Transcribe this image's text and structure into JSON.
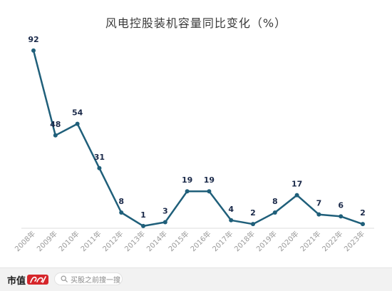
{
  "chart_data": {
    "type": "line",
    "title": "风电控股装机容量同比变化（%）",
    "categories": [
      "2008年",
      "2009年",
      "2010年",
      "2011年",
      "2012年",
      "2013年",
      "2014年",
      "2015年",
      "2016年",
      "2017年",
      "2018年",
      "2019年",
      "2020年",
      "2021年",
      "2022年",
      "2023年"
    ],
    "values": [
      92,
      48,
      54,
      31,
      8,
      1,
      3,
      19,
      19,
      4,
      2,
      8,
      17,
      7,
      6,
      2
    ],
    "data_labels": [
      "92",
      "48",
      "54",
      "31",
      "8",
      "1",
      "3",
      "19",
      "19",
      "4",
      "2",
      "8",
      "17",
      "7",
      "6",
      "2"
    ],
    "ylim": [
      -2,
      96
    ],
    "grid": false,
    "legend": "none",
    "line_color": "#1f5f7a",
    "label_color": "#1b2a4a"
  },
  "footer": {
    "brand": "市值",
    "search_placeholder": "买股之前搜一搜"
  },
  "icons": {
    "brand_logo": "brand-logo-icon",
    "search": "search-icon"
  }
}
